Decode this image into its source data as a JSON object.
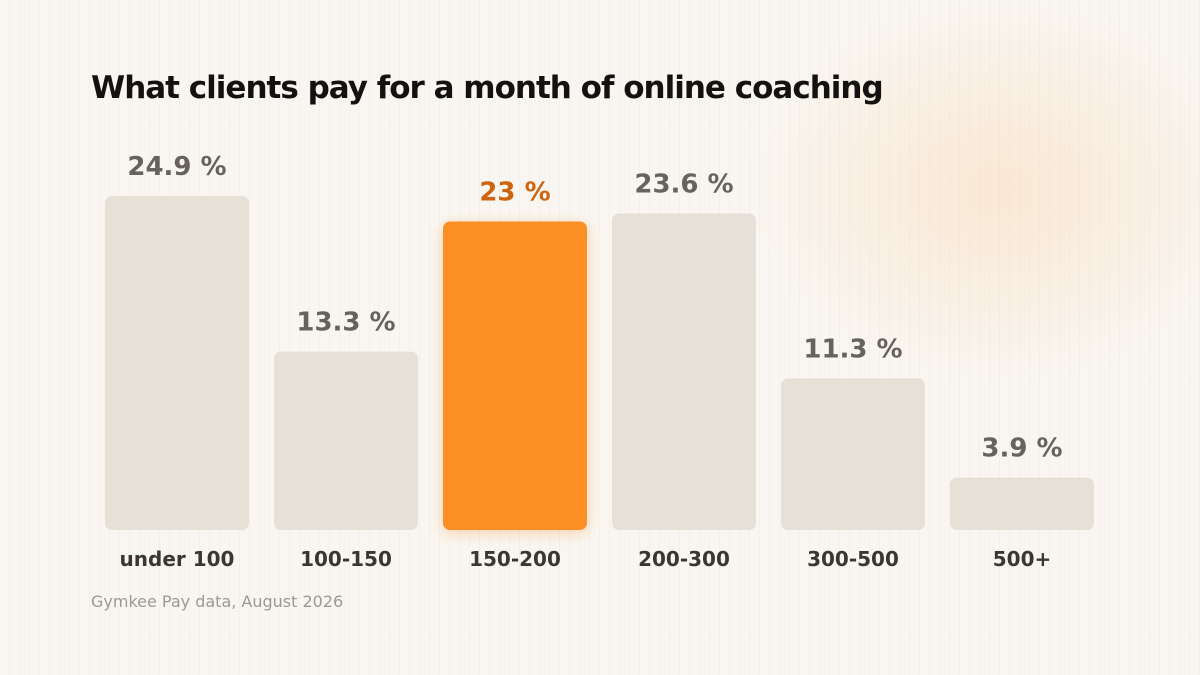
{
  "chart_data": {
    "type": "bar",
    "title": "What clients pay for a month of online coaching",
    "categories": [
      "under 100",
      "100-150",
      "150-200",
      "200-300",
      "300-500",
      "500+"
    ],
    "values": [
      24.9,
      13.3,
      23,
      23.6,
      11.3,
      3.9
    ],
    "value_labels": [
      "24.9 %",
      "13.3 %",
      "23 %",
      "23.6 %",
      "11.3 %",
      "3.9 %"
    ],
    "highlight_category": "150-200",
    "ylim": [
      0,
      24.9
    ],
    "grid": false,
    "colors": {
      "bar": "#e6e0d6",
      "highlight_bar": "#fb8f27",
      "value_label": "#67625b",
      "highlight_label": "#cc6410"
    }
  },
  "source": "Gymkee Pay data, August 2026"
}
